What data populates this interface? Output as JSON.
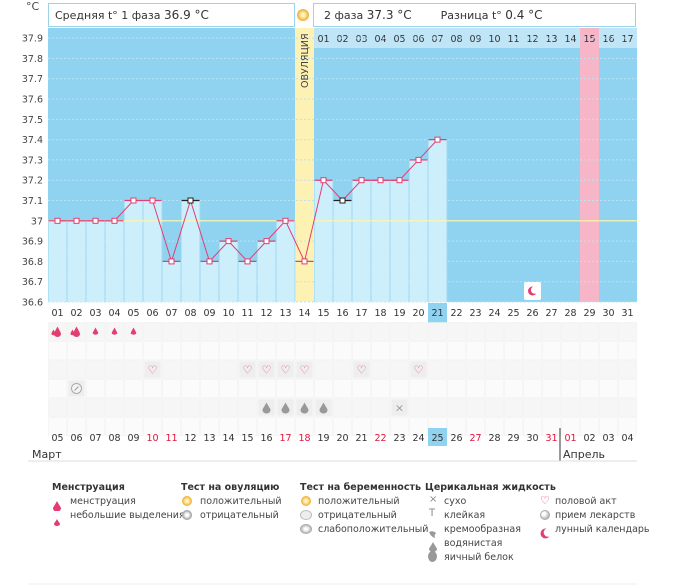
{
  "header": {
    "unit": "°C",
    "phase1_label": "Средняя t° 1 фаза",
    "phase1_value": "36.9 °C",
    "phase2_label": "2 фаза",
    "phase2_value": "37.3 °C",
    "diff_label": "Разница t°",
    "diff_value": "0.4 °C"
  },
  "ovulation_label": "ОВУЛЯЦИЯ",
  "chart_data": {
    "type": "line",
    "y_ticks": [
      "37.9",
      "37.8",
      "37.7",
      "37.6",
      "37.5",
      "37.4",
      "37.3",
      "37.2",
      "37.1",
      "37",
      "36.9",
      "36.8",
      "36.7",
      "36.6"
    ],
    "ylim": [
      36.6,
      37.95
    ],
    "cycle_days": [
      "01",
      "02",
      "03",
      "04",
      "05",
      "06",
      "07",
      "08",
      "09",
      "10",
      "11",
      "12",
      "13",
      "14",
      "15",
      "16",
      "17",
      "18",
      "19",
      "20",
      "21",
      "22",
      "23",
      "24",
      "25",
      "26",
      "27",
      "28",
      "29",
      "30",
      "31"
    ],
    "phase2_days": [
      "01",
      "02",
      "03",
      "04",
      "05",
      "06",
      "07",
      "08",
      "09",
      "10",
      "11",
      "12",
      "13",
      "14",
      "15",
      "16",
      "17"
    ],
    "temperatures": [
      37.0,
      37.0,
      37.0,
      37.0,
      37.1,
      37.1,
      36.8,
      37.1,
      36.8,
      36.9,
      36.8,
      36.9,
      37.0,
      36.8,
      37.2,
      37.1,
      37.2,
      37.2,
      37.2,
      37.3,
      37.4
    ],
    "excluded_points": [
      8,
      16
    ],
    "coverline": 37.0,
    "ovulation_day": 14,
    "highlight_phase2_day": 15,
    "current_cycle_day": 21,
    "moon_day": 26,
    "dates": [
      "05",
      "06",
      "07",
      "08",
      "09",
      "10",
      "11",
      "12",
      "13",
      "14",
      "15",
      "16",
      "17",
      "18",
      "19",
      "20",
      "21",
      "22",
      "23",
      "24",
      "25",
      "26",
      "27",
      "28",
      "29",
      "30",
      "31",
      "01",
      "02",
      "03",
      "04"
    ],
    "red_dates": [
      6,
      7,
      13,
      14,
      18,
      23,
      27,
      28
    ],
    "current_date_index": 21,
    "month_start": "Март",
    "month_next": "Апрель"
  },
  "rows": {
    "menstruation": {
      "1": "heavy",
      "2": "heavy2",
      "3": "light",
      "4": "light",
      "5": "light"
    },
    "sex": [
      6,
      11,
      12,
      13,
      14,
      17,
      20
    ],
    "pregnancy_test_negative": [
      2
    ],
    "fluid_watery": [
      12,
      13,
      14,
      15
    ],
    "fluid_dry": [
      19
    ]
  },
  "legend": {
    "menstruation": {
      "title": "Менструация",
      "items": [
        "менструация",
        "небольшие выделения"
      ]
    },
    "ovulation_test": {
      "title": "Тест на овуляцию",
      "items": [
        "положительный",
        "отрицательный"
      ]
    },
    "pregnancy_test": {
      "title": "Тест на беременность",
      "items": [
        "положительный",
        "отрицательный",
        "слабоположительный"
      ]
    },
    "cervical": {
      "title": "Церикальная жидкость",
      "items": [
        "сухо",
        "клейкая",
        "кремообразная",
        "водянистая",
        "яичный белок"
      ]
    },
    "misc": {
      "items": [
        "половой акт",
        "прием лекарств",
        "лунный календарь"
      ]
    }
  }
}
